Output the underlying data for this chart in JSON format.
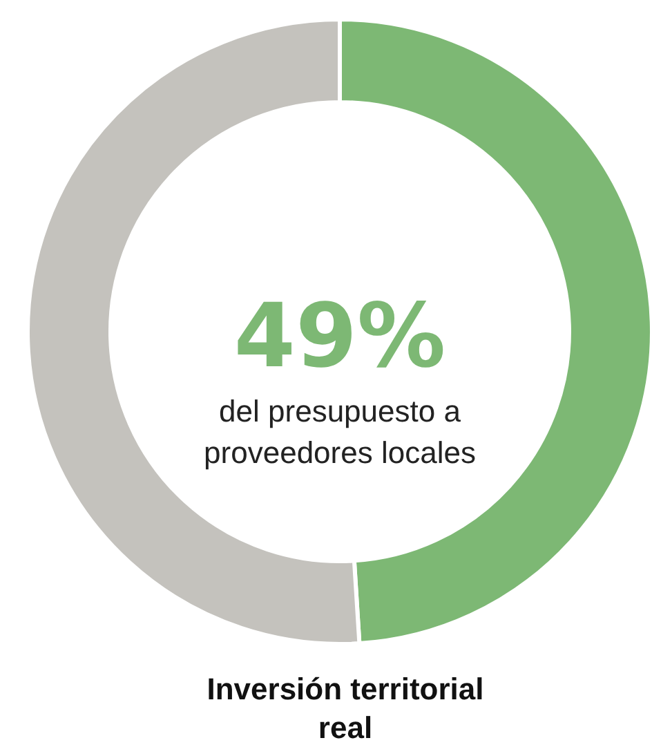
{
  "chart_data": {
    "type": "donut",
    "title": "Inversión territorial real",
    "categories": [
      null,
      null
    ],
    "values": [
      49,
      51
    ],
    "colors": [
      "#7db874",
      "#c4c2bd"
    ],
    "value_labels": [
      "49%",
      null
    ],
    "annotations": [
      "del presupuesto a proveedores locales"
    ]
  }
}
